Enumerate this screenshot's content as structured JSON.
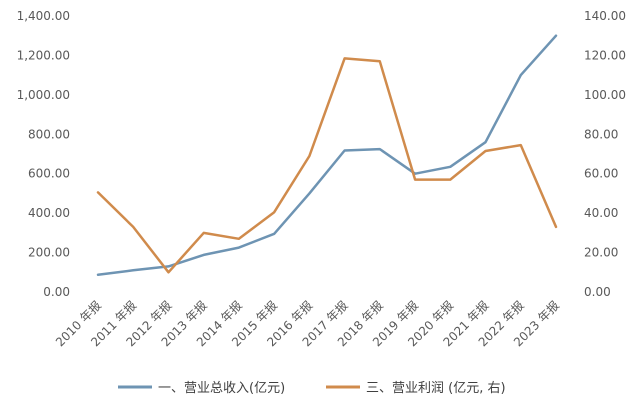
{
  "chart_data": {
    "type": "line",
    "categories": [
      "2010 年报",
      "2011 年报",
      "2012 年报",
      "2013 年报",
      "2014 年报",
      "2015 年报",
      "2016 年报",
      "2017 年报",
      "2018 年报",
      "2019 年报",
      "2020 年报",
      "2021 年报",
      "2022 年报",
      "2023 年报"
    ],
    "series": [
      {
        "name": "一、营业总收入(亿元)",
        "axis": "left",
        "color": "#6e94b3",
        "values": [
          88,
          110,
          130,
          188,
          225,
          295,
          500,
          718,
          725,
          600,
          635,
          760,
          1100,
          1300
        ]
      },
      {
        "name": "三、营业利润 (亿元, 右)",
        "axis": "right",
        "color": "#d08b4c",
        "values": [
          50.5,
          33,
          10,
          30,
          27,
          40.5,
          69,
          118.5,
          117,
          57,
          57,
          71.5,
          74.5,
          33
        ]
      }
    ],
    "y_left": {
      "range": [
        0,
        1400
      ],
      "ticks": [
        "0.00",
        "200.00",
        "400.00",
        "600.00",
        "800.00",
        "1,000.00",
        "1,200.00",
        "1,400.00"
      ]
    },
    "y_right": {
      "range": [
        0,
        140
      ],
      "ticks": [
        "0.00",
        "20.00",
        "40.00",
        "60.00",
        "80.00",
        "100.00",
        "120.00",
        "140.00"
      ]
    },
    "grid": false,
    "legend_position": "bottom"
  }
}
